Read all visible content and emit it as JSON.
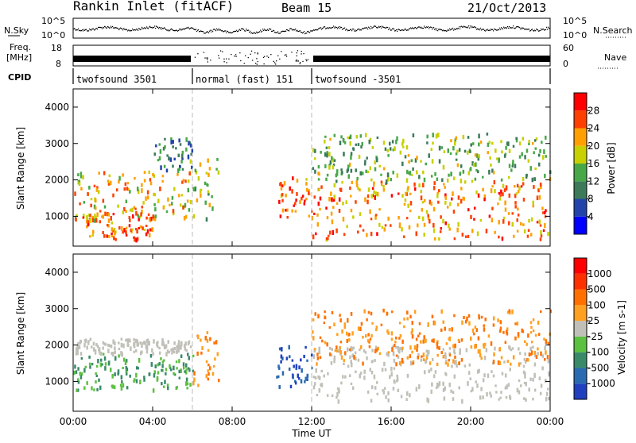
{
  "header": {
    "title": "Rankin Inlet (fitACF)",
    "beam": "Beam 15",
    "date": "21/Oct/2013"
  },
  "labels": {
    "nsky": "N.Sky",
    "nsearch": "N.Search",
    "freq_line1": "Freq.",
    "freq_line2": "[MHz]",
    "nave": "Nave",
    "cpid": "CPID"
  },
  "noise_panel": {
    "left_ticks": [
      "10^5",
      "10^0"
    ],
    "right_ticks": [
      "10^5",
      "10^0"
    ]
  },
  "freq_panel": {
    "left_ticks": [
      "18",
      "8"
    ],
    "right_ticks": [
      "60",
      "0"
    ]
  },
  "cpid_segments": [
    {
      "label": "twofsound 3501",
      "start": 0,
      "end": 6
    },
    {
      "label": "normal (fast) 151",
      "start": 6,
      "end": 12
    },
    {
      "label": "twofsound -3501",
      "start": 12,
      "end": 24
    }
  ],
  "chart_data": [
    {
      "type": "heatmap",
      "title": "",
      "xlabel": "Time UT",
      "ylabel": "Slant Range [km]",
      "xlim": [
        0,
        24
      ],
      "ylim": [
        180,
        4500
      ],
      "xticks": [
        "00:00",
        "04:00",
        "08:00",
        "12:00",
        "16:00",
        "20:00",
        "00:00"
      ],
      "yticks": [
        1000,
        2000,
        3000,
        4000
      ],
      "colorbar": {
        "label": "Power [dB]",
        "ticks": [
          "4",
          "8",
          "12",
          "16",
          "20",
          "24",
          "28"
        ],
        "colors": [
          "#0000ff",
          "#2244aa",
          "#3c7a5a",
          "#48a848",
          "#c8d000",
          "#ffa000",
          "#ff4000",
          "#ff0000"
        ]
      },
      "regions": [
        {
          "t": [
            0,
            6
          ],
          "r": [
            900,
            2300
          ],
          "level": 0.65
        },
        {
          "t": [
            0.3,
            4
          ],
          "r": [
            400,
            1200
          ],
          "level": 0.8
        },
        {
          "t": [
            4,
            6
          ],
          "r": [
            2300,
            3200
          ],
          "level": 0.3
        },
        {
          "t": [
            6,
            7.3
          ],
          "r": [
            900,
            2700
          ],
          "level": 0.5
        },
        {
          "t": [
            10.2,
            12
          ],
          "r": [
            900,
            2100
          ],
          "level": 0.85
        },
        {
          "t": [
            12,
            24
          ],
          "r": [
            400,
            2000
          ],
          "level": 0.75
        },
        {
          "t": [
            12,
            24
          ],
          "r": [
            2000,
            3300
          ],
          "level": 0.45
        }
      ]
    },
    {
      "type": "heatmap",
      "title": "",
      "xlabel": "Time UT",
      "ylabel": "Slant Range [km]",
      "xlim": [
        0,
        24
      ],
      "ylim": [
        180,
        4500
      ],
      "xticks": [
        "00:00",
        "04:00",
        "08:00",
        "12:00",
        "16:00",
        "20:00",
        "00:00"
      ],
      "yticks": [
        1000,
        2000,
        3000,
        4000
      ],
      "colorbar": {
        "label": "Velocity [m s-1]",
        "ticks": [
          "1000",
          "500",
          "100",
          "25",
          "-25",
          "-100",
          "-500",
          "-1000"
        ],
        "colors": [
          "#2040c0",
          "#2a6ab0",
          "#3a8a6a",
          "#5cc040",
          "#c0c0b8",
          "#ffa020",
          "#ff7000",
          "#ff3000",
          "#ff0000"
        ]
      },
      "regions": [
        {
          "t": [
            0,
            6
          ],
          "r": [
            800,
            1800
          ],
          "v": "green"
        },
        {
          "t": [
            0,
            6
          ],
          "r": [
            1800,
            2200
          ],
          "v": "gray"
        },
        {
          "t": [
            6,
            7.3
          ],
          "r": [
            900,
            2400
          ],
          "v": "orange"
        },
        {
          "t": [
            10.2,
            12
          ],
          "r": [
            900,
            2000
          ],
          "v": "blue"
        },
        {
          "t": [
            12,
            24
          ],
          "r": [
            500,
            2000
          ],
          "v": "gray"
        },
        {
          "t": [
            12,
            24
          ],
          "r": [
            1500,
            3000
          ],
          "v": "orange"
        }
      ]
    }
  ],
  "colors": {
    "grid_dash": "#bbbbbb",
    "axis": "#000000"
  }
}
